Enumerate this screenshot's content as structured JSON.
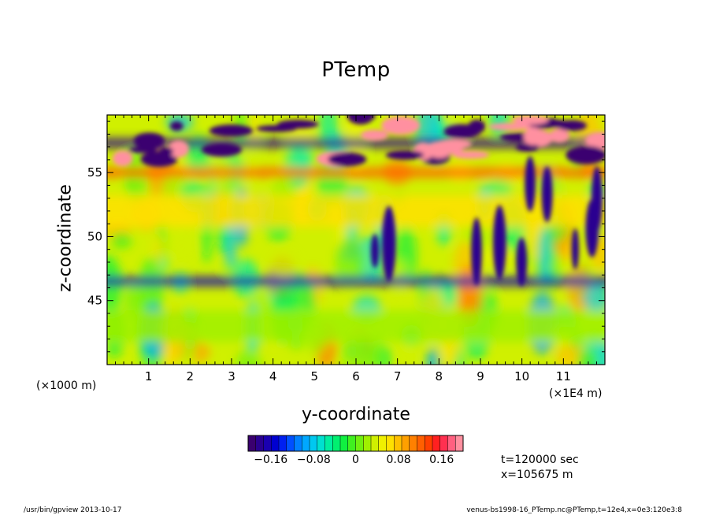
{
  "chart_data": {
    "type": "heatmap",
    "title": "PTemp",
    "xlabel": "y-coordinate",
    "ylabel": "z-coordinate",
    "x_unit_left": "(×1000 m)",
    "x_unit_right": "(×1E4 m)",
    "x_ticks": [
      "1",
      "2",
      "3",
      "4",
      "5",
      "6",
      "7",
      "8",
      "9",
      "10",
      "11"
    ],
    "y_ticks": [
      "45",
      "50",
      "55"
    ],
    "xlim": [
      0,
      120000
    ],
    "ylim": [
      40,
      59.5
    ],
    "colorbar": {
      "range": [
        -0.2,
        0.2
      ],
      "tick_labels": [
        "−0.16",
        "−0.08",
        "0",
        "0.08",
        "0.16"
      ],
      "colors": [
        "#3a006f",
        "#2a0090",
        "#1a00b0",
        "#0000d0",
        "#0020f0",
        "#0050ff",
        "#0080ff",
        "#00a8ff",
        "#00c8f0",
        "#00e0d0",
        "#00eea0",
        "#00f070",
        "#10f040",
        "#40f020",
        "#70f010",
        "#a0f000",
        "#d0f000",
        "#f0f000",
        "#ffe000",
        "#ffc000",
        "#ffa000",
        "#ff8000",
        "#ff6000",
        "#ff4000",
        "#ff2020",
        "#ff3050",
        "#ff6080",
        "#ff90a0"
      ]
    },
    "bands": [
      {
        "z": 55,
        "value": 0.12
      },
      {
        "z": 57.3,
        "value": -0.18
      },
      {
        "z": 46.5,
        "value": -0.16
      },
      {
        "z": 52,
        "value": 0.06
      },
      {
        "z": 43,
        "value": 0.02
      }
    ]
  },
  "annotations": {
    "time": "t=120000 sec",
    "x_position": "x=105675 m"
  },
  "footer": {
    "left": "/usr/bin/gpview  2013-10-17",
    "right": "venus-bs1998-16_PTemp.nc@PTemp,t=12e4,x=0e3:120e3:8"
  }
}
